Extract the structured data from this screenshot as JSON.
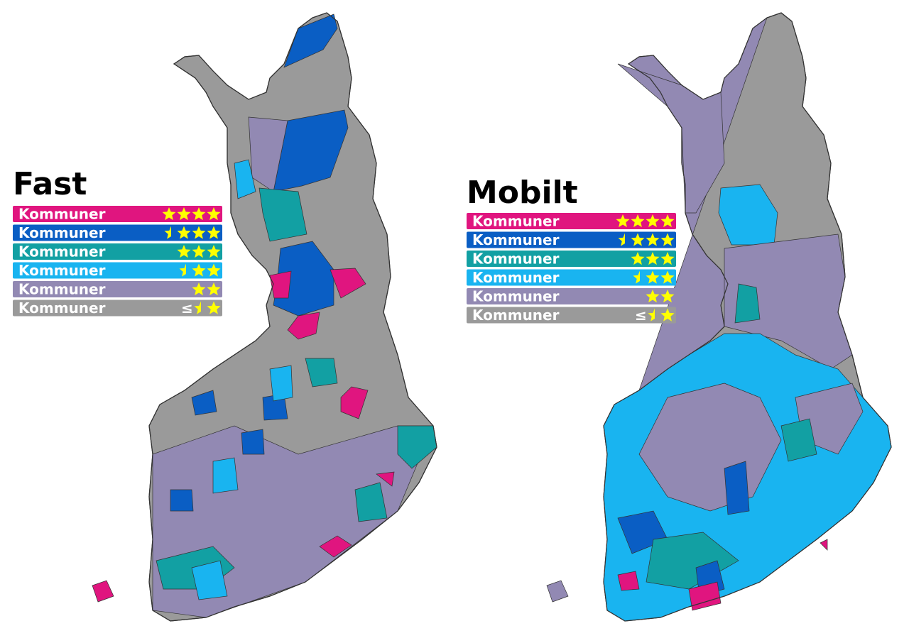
{
  "maps": [
    {
      "title": "Fast",
      "legend": [
        {
          "label": "Kommuner",
          "stars": 4,
          "color": "#e0157f"
        },
        {
          "label": "Kommuner",
          "stars": 3.5,
          "color": "#0a5ec4"
        },
        {
          "label": "Kommuner",
          "stars": 3,
          "color": "#12a0a3"
        },
        {
          "label": "Kommuner",
          "stars": 2.5,
          "color": "#19b4f0"
        },
        {
          "label": "Kommuner",
          "stars": 2,
          "color": "#9289b3"
        },
        {
          "label": "Kommuner",
          "prefix": "≤",
          "stars": 1.5,
          "color": "#9a9a9a"
        }
      ]
    },
    {
      "title": "Mobilt",
      "legend": [
        {
          "label": "Kommuner",
          "stars": 4,
          "color": "#e0157f"
        },
        {
          "label": "Kommuner",
          "stars": 3.5,
          "color": "#0a5ec4"
        },
        {
          "label": "Kommuner",
          "stars": 3,
          "color": "#12a0a3"
        },
        {
          "label": "Kommuner",
          "stars": 2.5,
          "color": "#19b4f0"
        },
        {
          "label": "Kommuner",
          "stars": 2,
          "color": "#9289b3"
        },
        {
          "label": "Kommuner",
          "prefix": "≤",
          "stars": 1.5,
          "color": "#9a9a9a"
        }
      ]
    }
  ]
}
